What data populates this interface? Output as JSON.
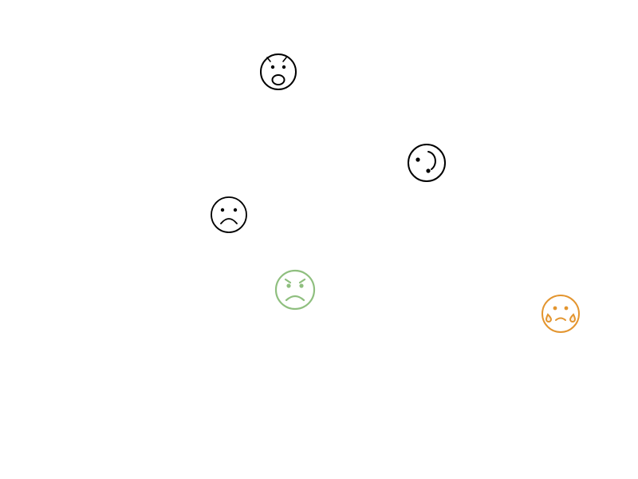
{
  "emojis": [
    {
      "name": "astonished-face-icon",
      "color": "#000000"
    },
    {
      "name": "upside-down-face-icon",
      "color": "#000000"
    },
    {
      "name": "frowning-face-icon",
      "color": "#000000"
    },
    {
      "name": "angry-face-icon",
      "color": "#8fbf7f"
    },
    {
      "name": "sad-sweat-face-icon",
      "color": "#e3952f"
    }
  ]
}
